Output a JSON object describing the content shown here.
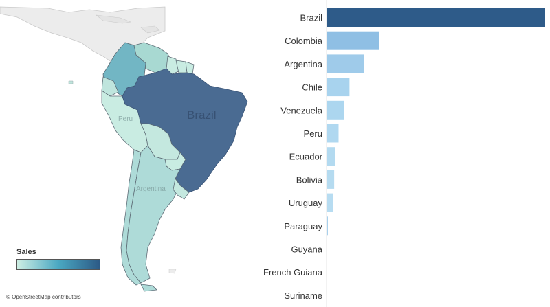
{
  "map": {
    "labels": {
      "brazil": "Brazil",
      "peru": "Peru",
      "argentina": "Argentina"
    },
    "legend": {
      "title": "Sales",
      "gradient_start": "#cdeee3",
      "gradient_mid": "#4aa8c2",
      "gradient_end": "#2c5a86"
    },
    "attribution": "© OpenStreetMap contributors",
    "colors": {
      "brazil": "#4a6b92",
      "colombia": "#72b6c4",
      "venezuela": "#a8d9d2",
      "light": "#c9ece2",
      "mid": "#aedbd8",
      "background_land": "#ececec",
      "border": "#5d6b75"
    }
  },
  "chart_data": {
    "type": "bar",
    "orientation": "horizontal",
    "categories": [
      "Brazil",
      "Colombia",
      "Argentina",
      "Chile",
      "Venezuela",
      "Peru",
      "Ecuador",
      "Bolivia",
      "Uruguay",
      "Paraguay",
      "Guyana",
      "French Guiana",
      "Suriname"
    ],
    "values": [
      100,
      24,
      17,
      10.5,
      8,
      5.5,
      4,
      3.5,
      3,
      0.6,
      0.2,
      0.2,
      0.1
    ],
    "colors": [
      "#2e5b89",
      "#8fbfe4",
      "#9fcbea",
      "#a8d3ee",
      "#acd6ef",
      "#b0d8f0",
      "#b3daf0",
      "#b5dbf0",
      "#b7dcf1",
      "#9fcbea",
      "#d0e6f2",
      "#d0e6f2",
      "#d0e6f2"
    ],
    "xlim": [
      0,
      100
    ],
    "title": "",
    "xlabel": "",
    "ylabel": ""
  }
}
